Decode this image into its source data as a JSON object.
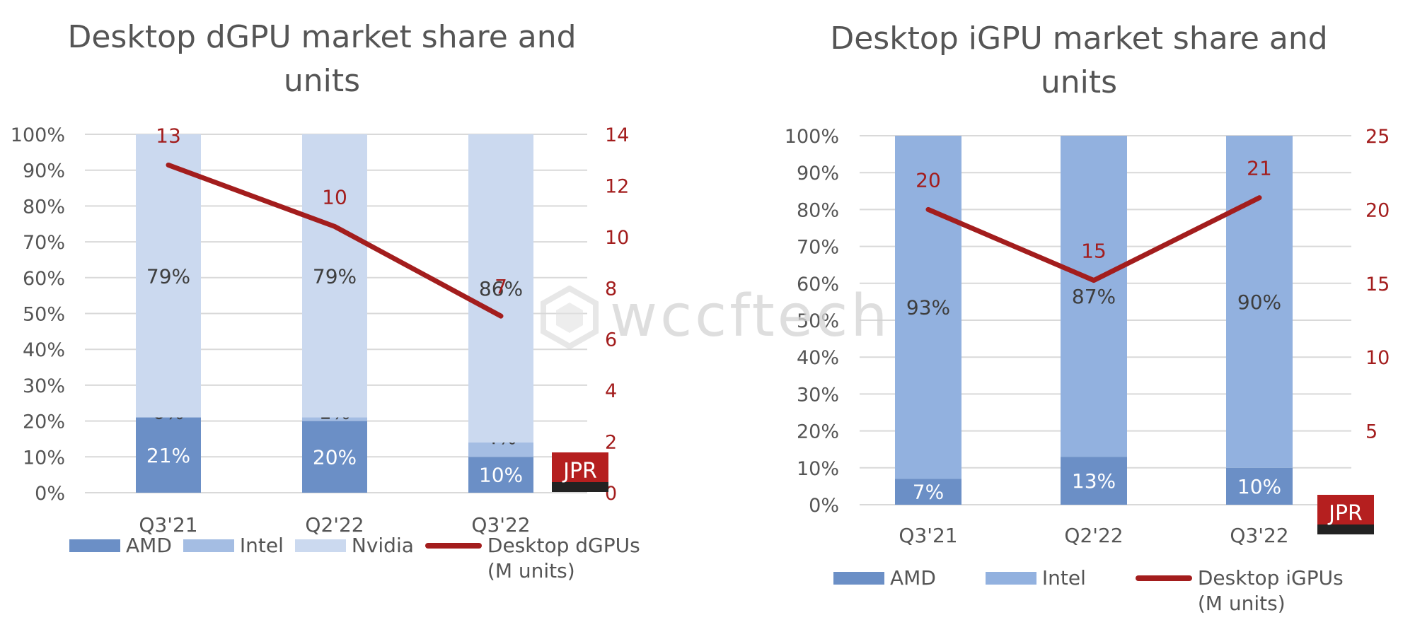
{
  "watermark": "wccftech",
  "logo_text": "JPR",
  "chart_data": [
    {
      "type": "bar",
      "stacked": true,
      "title": "Desktop dGPU market share and units",
      "categories": [
        "Q3'21",
        "Q2'22",
        "Q3'22"
      ],
      "series": [
        {
          "name": "AMD",
          "values": [
            21,
            20,
            10
          ],
          "labels": [
            "21%",
            "20%",
            "10%"
          ],
          "color": "#6b8fc6"
        },
        {
          "name": "Intel",
          "values": [
            0,
            1,
            4
          ],
          "labels": [
            "0%",
            "1%",
            "4%"
          ],
          "color": "#a4bde3"
        },
        {
          "name": "Nvidia",
          "values": [
            79,
            79,
            86
          ],
          "labels": [
            "79%",
            "79%",
            "86%"
          ],
          "color": "#cbd9ef"
        }
      ],
      "line_series": {
        "name": "Desktop dGPUs\n(M units)",
        "values": [
          13,
          10,
          7
        ],
        "plotted": [
          12.8,
          10.4,
          6.9
        ],
        "color": "#a31d1d",
        "axis": "right"
      },
      "y_ticks": [
        "0%",
        "10%",
        "20%",
        "30%",
        "40%",
        "50%",
        "60%",
        "70%",
        "80%",
        "90%",
        "100%"
      ],
      "ylim": [
        0,
        100
      ],
      "y2_ticks": [
        "0",
        "2",
        "4",
        "6",
        "8",
        "10",
        "12",
        "14"
      ],
      "y2lim": [
        0,
        14
      ],
      "grid": true,
      "legend_position": "bottom"
    },
    {
      "type": "bar",
      "stacked": true,
      "title": "Desktop iGPU market share and units",
      "categories": [
        "Q3'21",
        "Q2'22",
        "Q3'22"
      ],
      "series": [
        {
          "name": "AMD",
          "values": [
            7,
            13,
            10
          ],
          "labels": [
            "7%",
            "13%",
            "10%"
          ],
          "color": "#6b8fc6"
        },
        {
          "name": "Intel",
          "values": [
            93,
            87,
            90
          ],
          "labels": [
            "93%",
            "87%",
            "90%"
          ],
          "color": "#92b1df"
        }
      ],
      "line_series": {
        "name": "Desktop iGPUs\n(M units)",
        "values": [
          20,
          15,
          21
        ],
        "plotted": [
          20.0,
          15.2,
          20.8
        ],
        "color": "#a31d1d",
        "axis": "right"
      },
      "y_ticks": [
        "0%",
        "10%",
        "20%",
        "30%",
        "40%",
        "50%",
        "60%",
        "70%",
        "80%",
        "90%",
        "100%"
      ],
      "ylim": [
        0,
        100
      ],
      "y2_ticks": [
        "5",
        "10",
        "15",
        "20",
        "25"
      ],
      "y2lim": [
        0,
        25
      ],
      "grid": true,
      "legend_position": "bottom"
    }
  ]
}
